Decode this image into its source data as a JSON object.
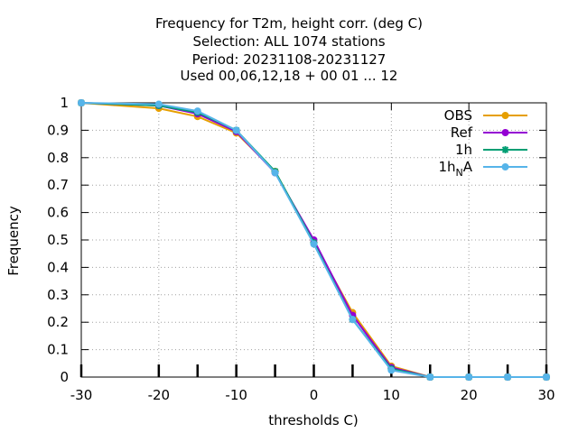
{
  "chart_data": {
    "type": "line",
    "title_lines": [
      "Frequency  for T2m, height corr. (deg C)",
      "Selection: ALL   1074 stations",
      "Period: 20231108-20231127",
      "Used  00,06,12,18 + 00 01 ... 12"
    ],
    "xlabel": "thresholds C)",
    "ylabel": "Frequency",
    "xlim": [
      -30,
      30
    ],
    "ylim": [
      0,
      1
    ],
    "x_ticks": [
      -30,
      -20,
      -10,
      0,
      10,
      20,
      30
    ],
    "y_ticks": [
      0,
      0.1,
      0.2,
      0.3,
      0.4,
      0.5,
      0.6,
      0.7,
      0.8,
      0.9,
      1
    ],
    "x_tick_labels": [
      "-30",
      "-20",
      "-10",
      "0",
      "10",
      "20",
      "30"
    ],
    "y_tick_labels": [
      "0",
      "0.1",
      "0.2",
      "0.3",
      "0.4",
      "0.5",
      "0.6",
      "0.7",
      "0.8",
      "0.9",
      "1"
    ],
    "grid": true,
    "legend_position": "top-right",
    "x": [
      -30,
      -20,
      -15,
      -10,
      -5,
      0,
      5,
      10,
      15,
      20,
      25,
      30
    ],
    "series": [
      {
        "name": "OBS",
        "color": "#e69f00",
        "marker": "circle",
        "values": [
          1.0,
          0.98,
          0.95,
          0.89,
          0.75,
          0.49,
          0.235,
          0.04,
          0.0,
          0.0,
          0.0,
          0.0
        ]
      },
      {
        "name": "Ref",
        "color": "#9400d3",
        "marker": "circle",
        "values": [
          1.0,
          0.99,
          0.96,
          0.895,
          0.745,
          0.5,
          0.225,
          0.035,
          0.0,
          0.0,
          0.0,
          0.0
        ]
      },
      {
        "name": "1h",
        "color": "#009e73",
        "marker": "star",
        "values": [
          1.0,
          0.99,
          0.965,
          0.9,
          0.75,
          0.49,
          0.21,
          0.03,
          0.0,
          0.0,
          0.0,
          0.0
        ]
      },
      {
        "name": "1h",
        "name_subscript": "N",
        "name_suffix": "A",
        "color": "#56b4e9",
        "marker": "circle",
        "values": [
          1.0,
          0.995,
          0.97,
          0.9,
          0.745,
          0.485,
          0.21,
          0.025,
          0.0,
          0.0,
          0.0,
          0.0
        ]
      }
    ]
  }
}
